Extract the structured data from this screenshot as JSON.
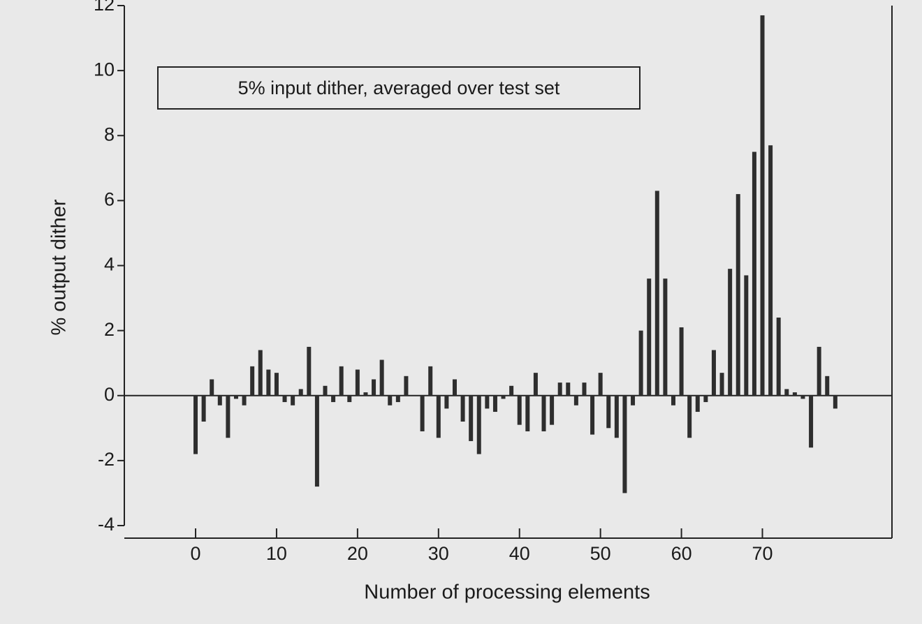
{
  "chart_data": {
    "type": "bar",
    "annotation": "5% input dither, averaged over test set",
    "xlabel": "Number of processing elements",
    "ylabel": "% output dither",
    "x": [
      0,
      1,
      2,
      3,
      4,
      5,
      6,
      7,
      8,
      9,
      10,
      11,
      12,
      13,
      14,
      15,
      16,
      17,
      18,
      19,
      20,
      21,
      22,
      23,
      24,
      25,
      26,
      27,
      28,
      29,
      30,
      31,
      32,
      33,
      34,
      35,
      36,
      37,
      38,
      39,
      40,
      41,
      42,
      43,
      44,
      45,
      46,
      47,
      48,
      49,
      50,
      51,
      52,
      53,
      54,
      55,
      56,
      57,
      58,
      59,
      60,
      61,
      62,
      63,
      64,
      65,
      66,
      67,
      68,
      69,
      70,
      71,
      72,
      73,
      74,
      75,
      76,
      77,
      78,
      79
    ],
    "values": [
      -1.8,
      -0.8,
      0.5,
      -0.3,
      -1.3,
      -0.1,
      -0.3,
      0.9,
      1.4,
      0.8,
      0.7,
      -0.2,
      -0.3,
      0.2,
      1.5,
      -2.8,
      0.3,
      -0.2,
      0.9,
      -0.2,
      0.8,
      0.1,
      0.5,
      1.1,
      -0.3,
      -0.2,
      0.6,
      0,
      -1.1,
      0.9,
      -1.3,
      -0.4,
      0.5,
      -0.8,
      -1.4,
      -1.8,
      -0.4,
      -0.5,
      -0.1,
      0.3,
      -0.9,
      -1.1,
      0.7,
      -1.1,
      -0.9,
      0.4,
      0.4,
      -0.3,
      0.4,
      -1.2,
      0.7,
      -1.0,
      -1.3,
      -3.0,
      -0.3,
      2.0,
      3.6,
      6.3,
      3.6,
      -0.3,
      2.1,
      -1.3,
      -0.5,
      -0.2,
      1.4,
      0.7,
      3.9,
      6.2,
      3.7,
      7.5,
      11.7,
      7.7,
      2.4,
      0.2,
      0.1,
      -0.1,
      -1.6,
      1.5,
      0.6,
      -0.4
    ],
    "color": "#2e2e2e",
    "xlim": [
      -8.8,
      86
    ],
    "xticks": [
      0,
      10,
      20,
      30,
      40,
      50,
      60,
      70
    ],
    "ylim": [
      -4,
      12
    ],
    "yticks": [
      -4,
      -2,
      0,
      2,
      4,
      6,
      8,
      10,
      12
    ]
  }
}
